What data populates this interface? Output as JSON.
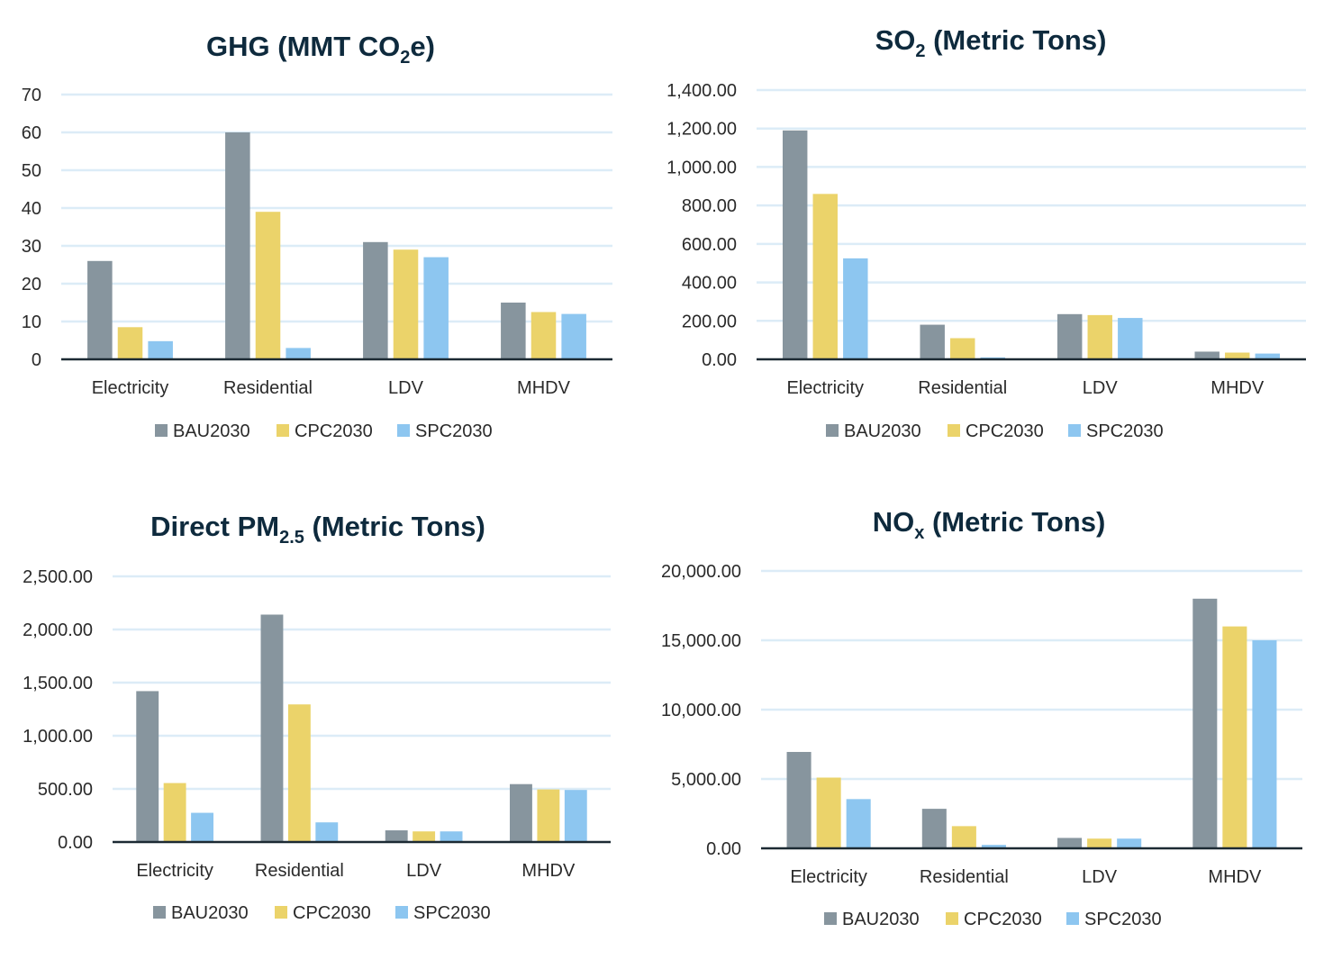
{
  "colors": {
    "BAU2030": "#87959e",
    "CPC2030": "#ebd36a",
    "SPC2030": "#8dc6f0",
    "grid": "#dcecf7",
    "axis": "#1c2a33"
  },
  "chart_data": [
    {
      "id": "ghg",
      "type": "bar",
      "title_main": "GHG (MMT CO",
      "title_sub": "2",
      "title_tail": "e)",
      "categories": [
        "Electricity",
        "Residential",
        "LDV",
        "MHDV"
      ],
      "series": [
        {
          "name": "BAU2030",
          "values": [
            26,
            60,
            31,
            15
          ]
        },
        {
          "name": "CPC2030",
          "values": [
            8.5,
            39,
            29,
            12.5
          ]
        },
        {
          "name": "SPC2030",
          "values": [
            4.8,
            3,
            27,
            12
          ]
        }
      ],
      "ylim": [
        0,
        70
      ],
      "yticks": [
        0,
        10,
        20,
        30,
        40,
        50,
        60,
        70
      ],
      "ytick_labels": [
        "0",
        "10",
        "20",
        "30",
        "40",
        "50",
        "60",
        "70"
      ],
      "grid": true,
      "legend": "bottom"
    },
    {
      "id": "so2",
      "type": "bar",
      "title_main": "SO",
      "title_sub": "2",
      "title_tail": " (Metric Tons)",
      "categories": [
        "Electricity",
        "Residential",
        "LDV",
        "MHDV"
      ],
      "series": [
        {
          "name": "BAU2030",
          "values": [
            1190,
            180,
            235,
            40
          ]
        },
        {
          "name": "CPC2030",
          "values": [
            860,
            110,
            230,
            35
          ]
        },
        {
          "name": "SPC2030",
          "values": [
            525,
            10,
            215,
            30
          ]
        }
      ],
      "ylim": [
        0,
        1400
      ],
      "yticks": [
        0,
        200,
        400,
        600,
        800,
        1000,
        1200,
        1400
      ],
      "ytick_labels": [
        "0.00",
        "200.00",
        "400.00",
        "600.00",
        "800.00",
        "1,000.00",
        "1,200.00",
        "1,400.00"
      ],
      "grid": true,
      "legend": "bottom"
    },
    {
      "id": "pm",
      "type": "bar",
      "title_main": "Direct PM",
      "title_sub": "2.5",
      "title_tail": " (Metric Tons)",
      "categories": [
        "Electricity",
        "Residential",
        "LDV",
        "MHDV"
      ],
      "series": [
        {
          "name": "BAU2030",
          "values": [
            1420,
            2140,
            110,
            545
          ]
        },
        {
          "name": "CPC2030",
          "values": [
            555,
            1295,
            100,
            495
          ]
        },
        {
          "name": "SPC2030",
          "values": [
            275,
            185,
            100,
            490
          ]
        }
      ],
      "ylim": [
        0,
        2500
      ],
      "yticks": [
        0,
        500,
        1000,
        1500,
        2000,
        2500
      ],
      "ytick_labels": [
        "0.00",
        "500.00",
        "1,000.00",
        "1,500.00",
        "2,000.00",
        "2,500.00"
      ],
      "grid": true,
      "legend": "bottom"
    },
    {
      "id": "nox",
      "type": "bar",
      "title_main": "NO",
      "title_sub": "x",
      "title_tail": " (Metric Tons)",
      "categories": [
        "Electricity",
        "Residential",
        "LDV",
        "MHDV"
      ],
      "series": [
        {
          "name": "BAU2030",
          "values": [
            6950,
            2850,
            750,
            18000
          ]
        },
        {
          "name": "CPC2030",
          "values": [
            5100,
            1600,
            700,
            16000
          ]
        },
        {
          "name": "SPC2030",
          "values": [
            3550,
            250,
            700,
            15000
          ]
        }
      ],
      "ylim": [
        0,
        20000
      ],
      "yticks": [
        0,
        5000,
        10000,
        15000,
        20000
      ],
      "ytick_labels": [
        "0.00",
        "5,000.00",
        "10,000.00",
        "15,000.00",
        "20,000.00"
      ],
      "grid": true,
      "legend": "bottom"
    }
  ]
}
